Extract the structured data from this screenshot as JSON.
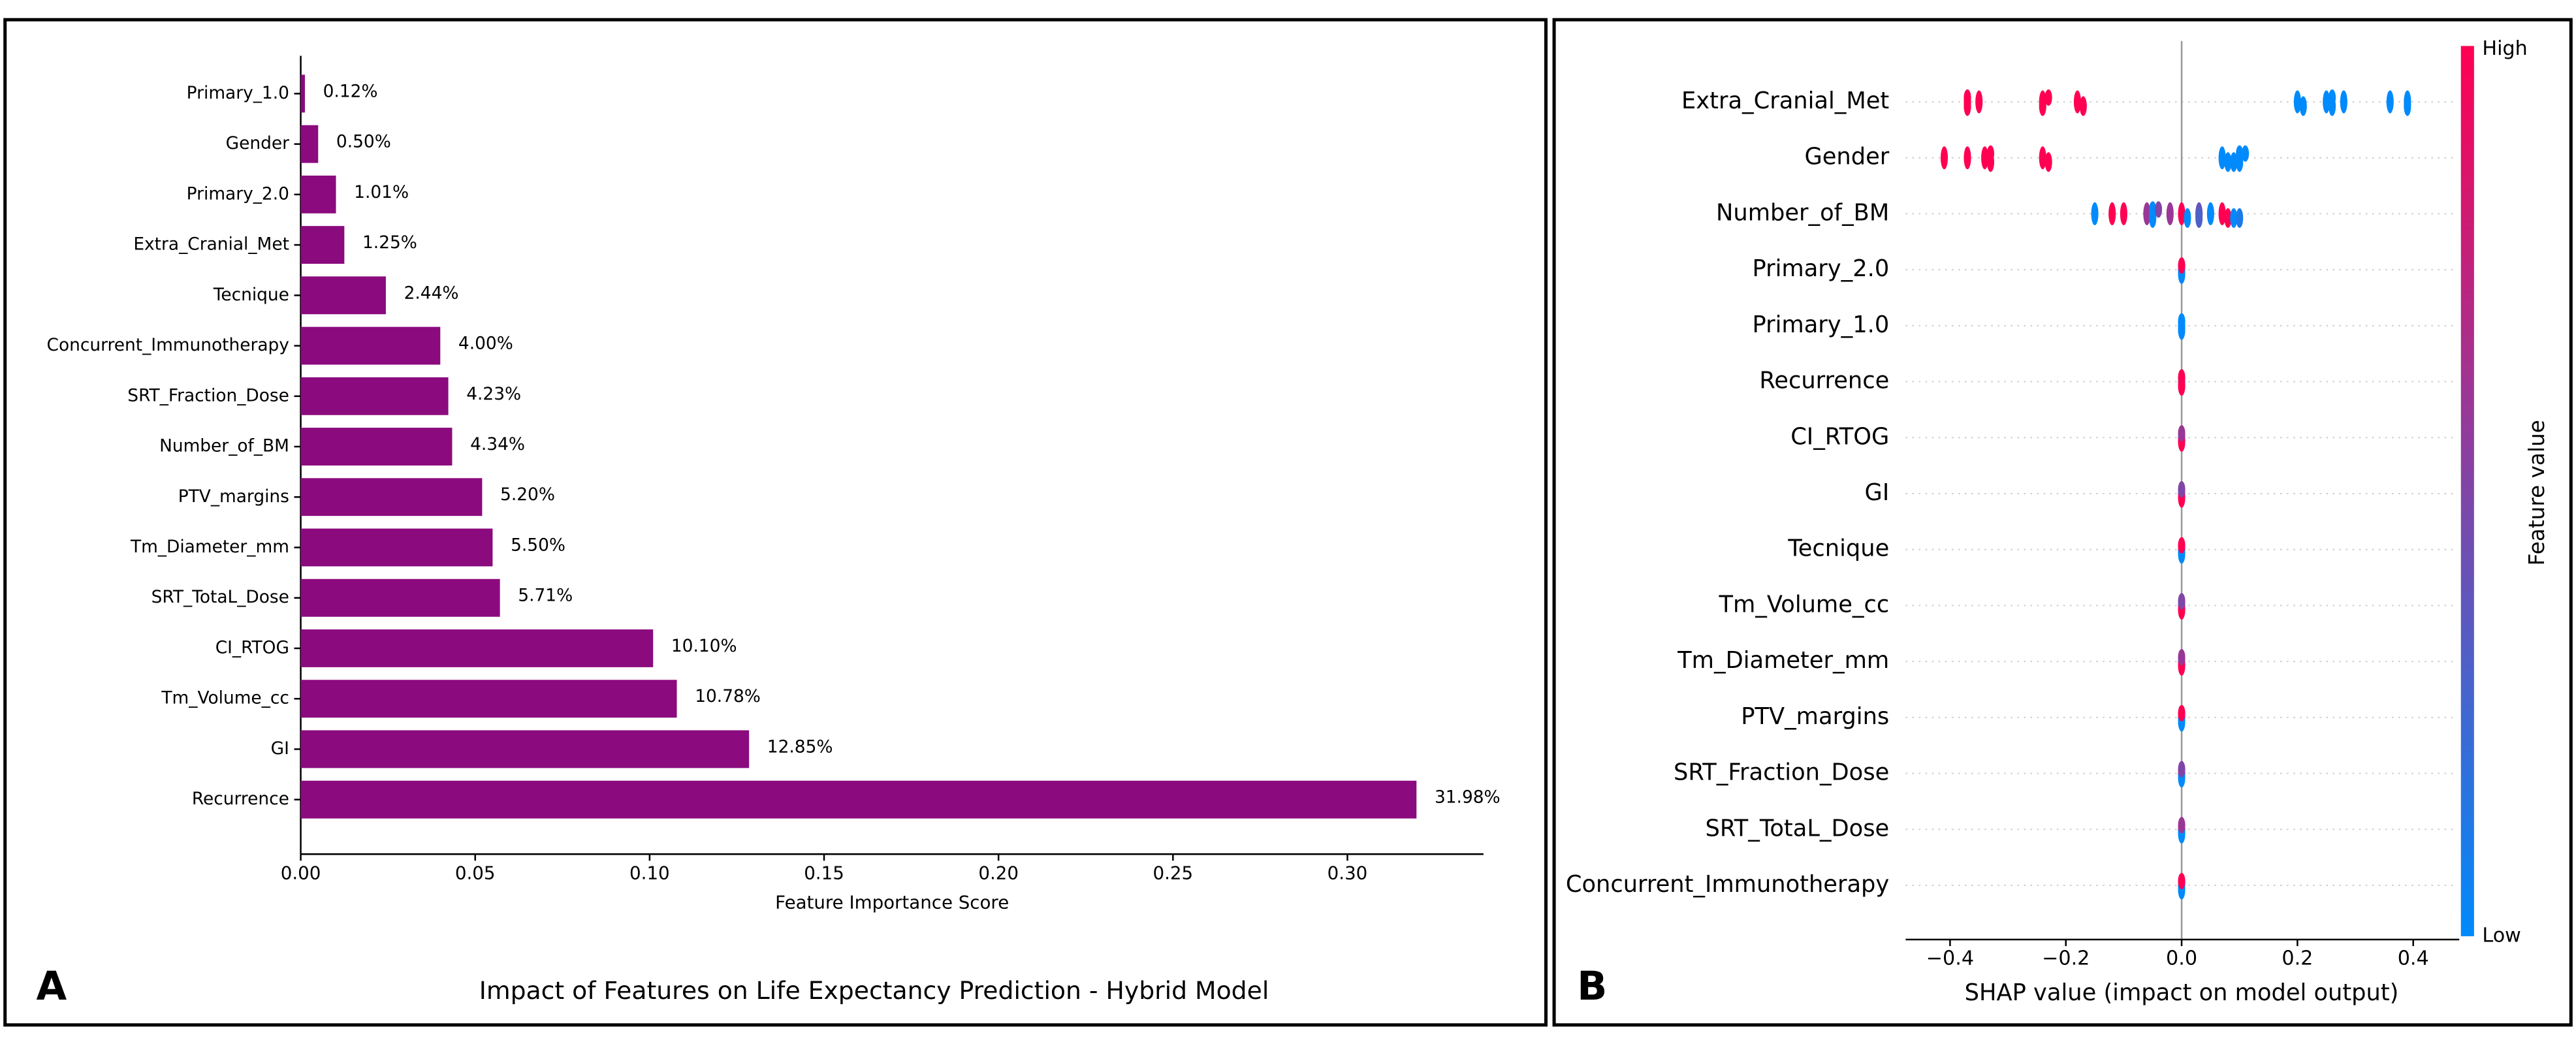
{
  "chart_data": [
    {
      "type": "barh",
      "panel_label": "A",
      "caption": "Impact of Features on Life Expectancy Prediction - Hybrid Model",
      "x_label": "Feature Importance Score",
      "categories": [
        "Primary_1.0",
        "Gender",
        "Primary_2.0",
        "Extra_Cranial_Met",
        "Tecnique",
        "Concurrent_Immunotherapy",
        "SRT_Fraction_Dose",
        "Number_of_BM",
        "PTV_margins",
        "Tm_Diameter_mm",
        "SRT_TotaL_Dose",
        "CI_RTOG",
        "Tm_Volume_cc",
        "GI",
        "Recurrence"
      ],
      "values": [
        0.0012,
        0.005,
        0.0101,
        0.0125,
        0.0244,
        0.04,
        0.0423,
        0.0434,
        0.052,
        0.055,
        0.0571,
        0.101,
        0.1078,
        0.1285,
        0.3198
      ],
      "value_labels": [
        "0.12%",
        "0.50%",
        "1.01%",
        "1.25%",
        "2.44%",
        "4.00%",
        "4.23%",
        "4.34%",
        "5.20%",
        "5.50%",
        "5.71%",
        "10.10%",
        "10.78%",
        "12.85%",
        "31.98%"
      ],
      "color": "#8b0a7e",
      "xlim": [
        0,
        0.339
      ],
      "xticks": [
        {
          "value": 0,
          "label": "0.00"
        },
        {
          "value": 0.05,
          "label": "0.05"
        },
        {
          "value": 0.1,
          "label": "0.10"
        },
        {
          "value": 0.15,
          "label": "0.15"
        },
        {
          "value": 0.2,
          "label": "0.20"
        },
        {
          "value": 0.25,
          "label": "0.25"
        },
        {
          "value": 0.3,
          "label": "0.30"
        }
      ]
    },
    {
      "type": "beeswarm",
      "panel_label": "B",
      "x_label": "SHAP value (impact on model output)",
      "xlim": [
        -0.49,
        0.49
      ],
      "xticks": [
        {
          "value": -0.4,
          "label": "−0.4"
        },
        {
          "value": -0.2,
          "label": "−0.2"
        },
        {
          "value": 0,
          "label": "0.0"
        },
        {
          "value": 0.2,
          "label": "0.2"
        },
        {
          "value": 0.4,
          "label": "0.4"
        }
      ],
      "grid": true,
      "colorbar": {
        "label": "Feature value",
        "high": "High",
        "low": "Low",
        "low_color": "#008afb",
        "high_color": "#ff0052"
      },
      "rows": [
        {
          "name": "Extra_Cranial_Met",
          "values": [
            -0.37,
            -0.37,
            -0.37,
            -0.35,
            -0.24,
            -0.24,
            -0.23,
            -0.18,
            -0.17,
            0.2,
            0.21,
            0.25,
            0.26,
            0.26,
            0.28,
            0.36,
            0.39,
            0.39
          ],
          "feature_values": [
            1,
            1,
            1,
            1,
            1,
            1,
            1,
            1,
            1,
            0,
            0,
            0,
            0,
            0,
            0,
            0,
            0,
            0
          ]
        },
        {
          "name": "Gender",
          "values": [
            -0.41,
            -0.37,
            -0.34,
            -0.33,
            -0.33,
            -0.24,
            -0.23,
            0.07,
            0.08,
            0.09,
            0.1,
            0.1,
            0.11
          ],
          "feature_values": [
            1,
            1,
            1,
            1,
            1,
            1,
            1,
            0,
            0,
            0,
            0,
            0,
            0
          ]
        },
        {
          "name": "Number_of_BM",
          "values": [
            -0.15,
            -0.12,
            -0.1,
            -0.06,
            -0.05,
            -0.05,
            -0.04,
            -0.02,
            0.0,
            0.01,
            0.03,
            0.03,
            0.05,
            0.07,
            0.08,
            0.09,
            0.1
          ],
          "feature_values": [
            0,
            1,
            1,
            0.6,
            0,
            0,
            0.5,
            0.6,
            1,
            0,
            0.4,
            0.3,
            0,
            1,
            1,
            0,
            0.1
          ]
        },
        {
          "name": "Primary_2.0",
          "values": [
            0,
            0,
            0
          ],
          "feature_values": [
            0,
            0,
            1
          ]
        },
        {
          "name": "Primary_1.0",
          "values": [
            0,
            0,
            0
          ],
          "feature_values": [
            0,
            0,
            0
          ]
        },
        {
          "name": "Recurrence",
          "values": [
            0,
            0,
            0
          ],
          "feature_values": [
            0,
            1,
            1
          ]
        },
        {
          "name": "CI_RTOG",
          "values": [
            0,
            0,
            0
          ],
          "feature_values": [
            0,
            1,
            0.6
          ]
        },
        {
          "name": "GI",
          "values": [
            0,
            0,
            0
          ],
          "feature_values": [
            0,
            1,
            0.5
          ]
        },
        {
          "name": "Tecnique",
          "values": [
            0,
            0,
            0
          ],
          "feature_values": [
            1,
            0,
            1
          ]
        },
        {
          "name": "Tm_Volume_cc",
          "values": [
            0,
            0,
            0
          ],
          "feature_values": [
            0,
            1,
            0.5
          ]
        },
        {
          "name": "Tm_Diameter_mm",
          "values": [
            0,
            0,
            0
          ],
          "feature_values": [
            0,
            1,
            0.6
          ]
        },
        {
          "name": "PTV_margins",
          "values": [
            0,
            0,
            0
          ],
          "feature_values": [
            1,
            0,
            1
          ]
        },
        {
          "name": "SRT_Fraction_Dose",
          "values": [
            0,
            0,
            0
          ],
          "feature_values": [
            1,
            0,
            0.5
          ]
        },
        {
          "name": "SRT_TotaL_Dose",
          "values": [
            0,
            0,
            0
          ],
          "feature_values": [
            1,
            0,
            0.6
          ]
        },
        {
          "name": "Concurrent_Immunotherapy",
          "values": [
            0,
            0,
            0
          ],
          "feature_values": [
            0,
            0,
            1
          ]
        }
      ]
    }
  ]
}
